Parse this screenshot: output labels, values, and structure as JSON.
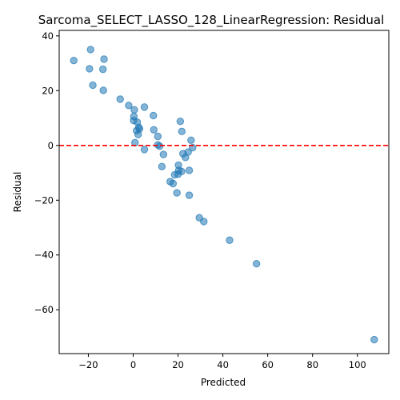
{
  "chart_data": {
    "type": "scatter",
    "title": "Sarcoma_SELECT_LASSO_128_LinearRegression: Residual",
    "xlabel": "Predicted",
    "ylabel": "Residual",
    "xlim": [
      -33,
      114
    ],
    "ylim": [
      -76,
      42
    ],
    "xticks": [
      -20,
      0,
      20,
      40,
      60,
      80,
      100
    ],
    "xtick_labels": [
      "−20",
      "0",
      "20",
      "40",
      "60",
      "80",
      "100"
    ],
    "yticks": [
      -60,
      -40,
      -20,
      0,
      20,
      40
    ],
    "ytick_labels": [
      "−60",
      "−40",
      "−20",
      "0",
      "20",
      "40"
    ],
    "grid": false,
    "reference_line": {
      "y": 0,
      "style": "dashed",
      "color": "#ff0000"
    },
    "point_color": "#1f77b4",
    "points": [
      {
        "x": -26.5,
        "y": 31.0
      },
      {
        "x": -19.0,
        "y": 35.0
      },
      {
        "x": -19.5,
        "y": 28.0
      },
      {
        "x": -18.0,
        "y": 22.0
      },
      {
        "x": -13.0,
        "y": 31.5
      },
      {
        "x": -13.5,
        "y": 27.8
      },
      {
        "x": -13.3,
        "y": 20.1
      },
      {
        "x": -5.8,
        "y": 16.9
      },
      {
        "x": -2.0,
        "y": 14.6
      },
      {
        "x": 0.5,
        "y": 13.0
      },
      {
        "x": 5.0,
        "y": 14.0
      },
      {
        "x": 0.3,
        "y": 10.6
      },
      {
        "x": 0.2,
        "y": 9.1
      },
      {
        "x": 1.8,
        "y": 8.5
      },
      {
        "x": 2.5,
        "y": 6.6
      },
      {
        "x": 2.8,
        "y": 6.0
      },
      {
        "x": 1.5,
        "y": 5.4
      },
      {
        "x": 2.2,
        "y": 4.0
      },
      {
        "x": 0.8,
        "y": 1.0
      },
      {
        "x": 9.0,
        "y": 10.9
      },
      {
        "x": 9.2,
        "y": 5.7
      },
      {
        "x": 11.0,
        "y": 3.3
      },
      {
        "x": 11.0,
        "y": 0.2
      },
      {
        "x": 11.8,
        "y": -0.3
      },
      {
        "x": 5.0,
        "y": -1.5
      },
      {
        "x": 13.5,
        "y": -3.3
      },
      {
        "x": 12.8,
        "y": -7.7
      },
      {
        "x": 21.0,
        "y": 8.8
      },
      {
        "x": 21.7,
        "y": 5.1
      },
      {
        "x": 25.8,
        "y": 1.9
      },
      {
        "x": 26.5,
        "y": -0.8
      },
      {
        "x": 24.5,
        "y": -2.4
      },
      {
        "x": 22.2,
        "y": -3.0
      },
      {
        "x": 23.3,
        "y": -4.4
      },
      {
        "x": 20.2,
        "y": -7.2
      },
      {
        "x": 20.3,
        "y": -9.1
      },
      {
        "x": 21.6,
        "y": -9.5
      },
      {
        "x": 25.0,
        "y": -9.1
      },
      {
        "x": 18.5,
        "y": -10.7
      },
      {
        "x": 20.0,
        "y": -10.5
      },
      {
        "x": 16.5,
        "y": -13.2
      },
      {
        "x": 17.8,
        "y": -13.9
      },
      {
        "x": 19.5,
        "y": -17.3
      },
      {
        "x": 25.0,
        "y": -18.2
      },
      {
        "x": 29.5,
        "y": -26.4
      },
      {
        "x": 31.5,
        "y": -27.8
      },
      {
        "x": 43.0,
        "y": -34.6
      },
      {
        "x": 55.0,
        "y": -43.2
      },
      {
        "x": 107.5,
        "y": -70.9
      }
    ]
  }
}
